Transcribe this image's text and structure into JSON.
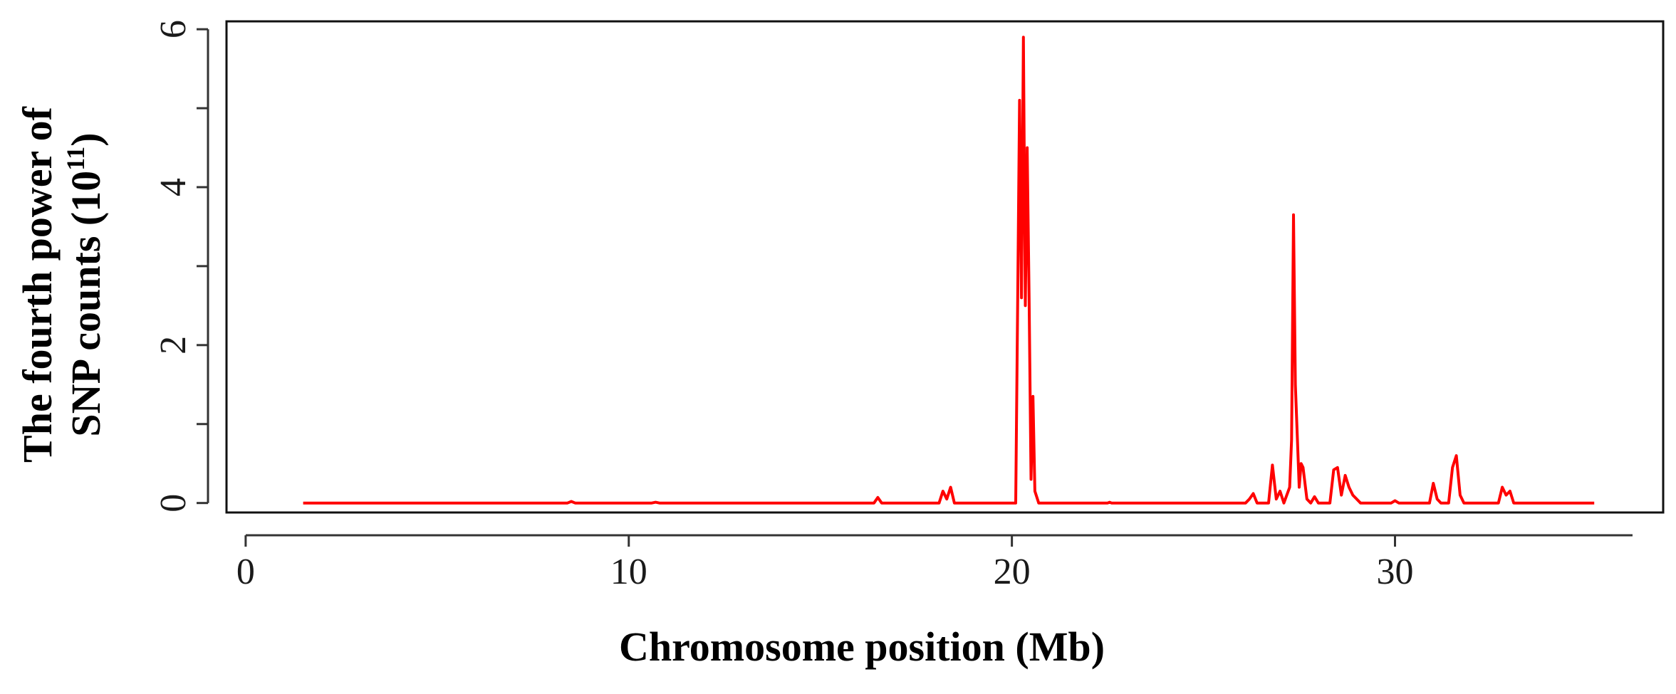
{
  "chart_data": {
    "type": "line",
    "title": "",
    "xlabel": "Chromosome position (Mb)",
    "ylabel": {
      "line1": "The fourth power of",
      "line2_prefix": "SNP counts (10",
      "line2_sup": "11",
      "line2_suffix": ")"
    },
    "xlim": [
      -0.5,
      37
    ],
    "ylim": [
      -0.12,
      6.1
    ],
    "x_ticks": [
      0,
      10,
      20,
      30
    ],
    "y_ticks": [
      0,
      1,
      2,
      3,
      4,
      5,
      6
    ],
    "y_tick_labels": [
      {
        "value": 0,
        "label": "0"
      },
      {
        "value": 2,
        "label": "2"
      },
      {
        "value": 4,
        "label": "4"
      },
      {
        "value": 6,
        "label": "6"
      }
    ],
    "grid": false,
    "legend": "none",
    "series": [
      {
        "color": "#ff0000",
        "points": [
          [
            1.5,
            0
          ],
          [
            8.4,
            0
          ],
          [
            8.5,
            0.02
          ],
          [
            8.6,
            0
          ],
          [
            10.6,
            0
          ],
          [
            10.7,
            0.01
          ],
          [
            10.8,
            0
          ],
          [
            16.4,
            0
          ],
          [
            16.5,
            0.07
          ],
          [
            16.6,
            0
          ],
          [
            18.1,
            0
          ],
          [
            18.2,
            0.15
          ],
          [
            18.3,
            0.05
          ],
          [
            18.4,
            0.2
          ],
          [
            18.5,
            0
          ],
          [
            20.1,
            0
          ],
          [
            20.15,
            2.5
          ],
          [
            20.2,
            5.1
          ],
          [
            20.25,
            2.6
          ],
          [
            20.3,
            5.9
          ],
          [
            20.35,
            2.5
          ],
          [
            20.4,
            4.5
          ],
          [
            20.45,
            2.6
          ],
          [
            20.5,
            0.3
          ],
          [
            20.55,
            1.35
          ],
          [
            20.6,
            0.15
          ],
          [
            20.7,
            0
          ],
          [
            22.5,
            0
          ],
          [
            22.55,
            0.01
          ],
          [
            22.6,
            0
          ],
          [
            26.1,
            0
          ],
          [
            26.2,
            0.05
          ],
          [
            26.3,
            0.12
          ],
          [
            26.4,
            0
          ],
          [
            26.7,
            0
          ],
          [
            26.8,
            0.48
          ],
          [
            26.9,
            0.05
          ],
          [
            27.0,
            0.15
          ],
          [
            27.1,
            0
          ],
          [
            27.25,
            0.2
          ],
          [
            27.3,
            0.8
          ],
          [
            27.35,
            3.65
          ],
          [
            27.4,
            1.5
          ],
          [
            27.5,
            0.2
          ],
          [
            27.55,
            0.5
          ],
          [
            27.6,
            0.45
          ],
          [
            27.7,
            0.05
          ],
          [
            27.8,
            0
          ],
          [
            27.9,
            0.08
          ],
          [
            28.0,
            0
          ],
          [
            28.3,
            0
          ],
          [
            28.4,
            0.42
          ],
          [
            28.5,
            0.45
          ],
          [
            28.6,
            0.1
          ],
          [
            28.7,
            0.35
          ],
          [
            28.8,
            0.2
          ],
          [
            28.9,
            0.1
          ],
          [
            29.0,
            0.05
          ],
          [
            29.1,
            0
          ],
          [
            29.9,
            0
          ],
          [
            30.0,
            0.03
          ],
          [
            30.1,
            0
          ],
          [
            30.9,
            0
          ],
          [
            31.0,
            0.25
          ],
          [
            31.1,
            0.05
          ],
          [
            31.2,
            0
          ],
          [
            31.4,
            0
          ],
          [
            31.5,
            0.45
          ],
          [
            31.6,
            0.6
          ],
          [
            31.7,
            0.1
          ],
          [
            31.8,
            0
          ],
          [
            32.7,
            0
          ],
          [
            32.8,
            0.2
          ],
          [
            32.9,
            0.1
          ],
          [
            33.0,
            0.15
          ],
          [
            33.1,
            0
          ],
          [
            35.2,
            0
          ]
        ]
      }
    ]
  }
}
